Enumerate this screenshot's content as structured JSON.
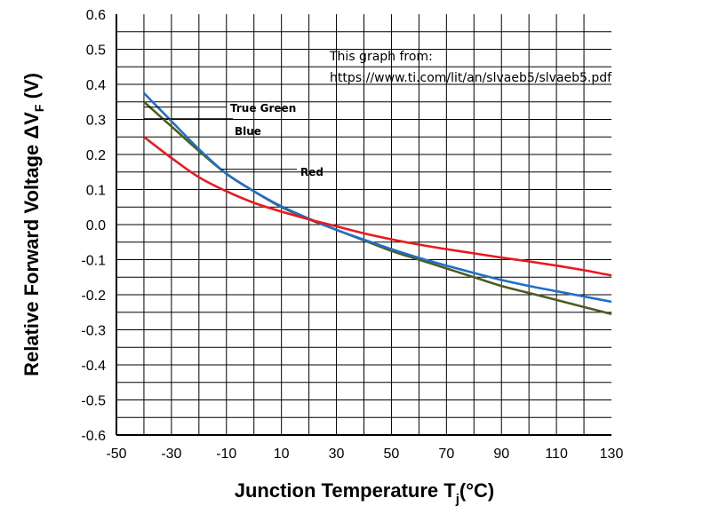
{
  "chart_data": {
    "type": "line",
    "xlabel_main": "Junction Temperature T",
    "xlabel_sub": "j",
    "xlabel_unit": "(°C)",
    "ylabel_main": "Relative Forward Voltage ΔV",
    "ylabel_sub": "F",
    "ylabel_unit": " (V)",
    "xlim": [
      -50,
      130
    ],
    "ylim": [
      -0.6,
      0.6
    ],
    "x_ticks": [
      -50,
      -30,
      -10,
      10,
      30,
      50,
      70,
      90,
      110,
      130
    ],
    "y_ticks": [
      0.6,
      0.5,
      0.4,
      0.3,
      0.2,
      0.1,
      0.0,
      -0.1,
      -0.2,
      -0.3,
      -0.4,
      -0.5,
      -0.6
    ],
    "y_tick_labels": [
      "0.6",
      "0.5",
      "0.4",
      "0.3",
      "0.2",
      "0.1",
      "0.0",
      "-0.1",
      "-0.2",
      "-0.3",
      "-0.4",
      "-0.5",
      "-0.6"
    ],
    "grid": true,
    "note_line1": "This graph from:",
    "note_line2": "https://www.ti.com/lit/an/slvaeb5/slvaeb5.pdf",
    "series": [
      {
        "name": "True Green",
        "color": "#4a5e23",
        "x": [
          -40,
          -30,
          -20,
          -10,
          0,
          10,
          20,
          30,
          40,
          50,
          60,
          70,
          80,
          90,
          100,
          110,
          120,
          130
        ],
        "y": [
          0.35,
          0.28,
          0.21,
          0.145,
          0.095,
          0.05,
          0.015,
          -0.015,
          -0.045,
          -0.075,
          -0.1,
          -0.125,
          -0.15,
          -0.175,
          -0.195,
          -0.215,
          -0.235,
          -0.255
        ]
      },
      {
        "name": "Blue",
        "color": "#1f6fc5",
        "x": [
          -40,
          -30,
          -20,
          -10,
          0,
          10,
          20,
          30,
          40,
          50,
          60,
          70,
          80,
          90,
          100,
          110,
          120,
          130
        ],
        "y": [
          0.375,
          0.295,
          0.215,
          0.145,
          0.095,
          0.052,
          0.017,
          -0.015,
          -0.043,
          -0.07,
          -0.095,
          -0.117,
          -0.138,
          -0.158,
          -0.175,
          -0.19,
          -0.205,
          -0.22
        ]
      },
      {
        "name": "Red",
        "color": "#e8191e",
        "x": [
          -40,
          -30,
          -20,
          -10,
          0,
          10,
          20,
          30,
          40,
          50,
          60,
          70,
          80,
          90,
          100,
          110,
          120,
          130
        ],
        "y": [
          0.25,
          0.19,
          0.135,
          0.095,
          0.062,
          0.037,
          0.015,
          -0.005,
          -0.025,
          -0.042,
          -0.057,
          -0.07,
          -0.082,
          -0.094,
          -0.105,
          -0.117,
          -0.13,
          -0.145
        ]
      }
    ]
  }
}
